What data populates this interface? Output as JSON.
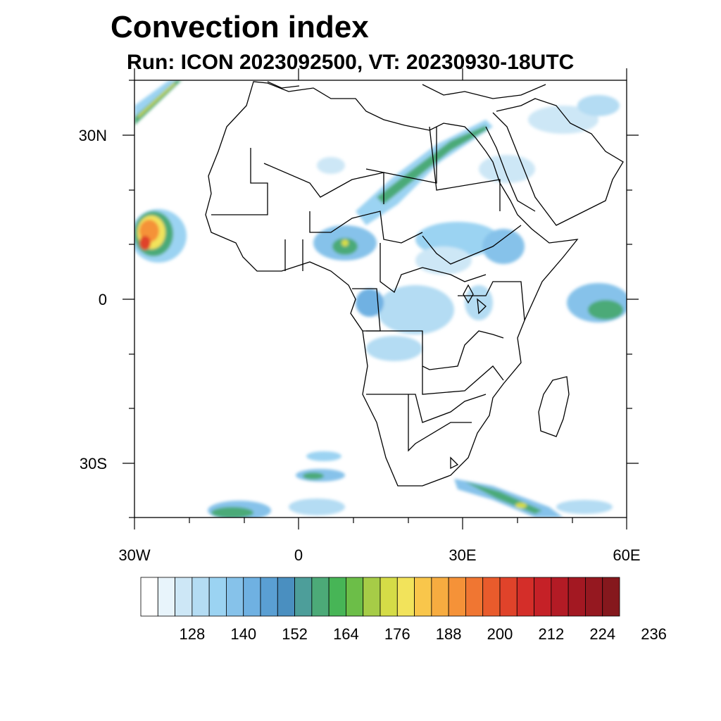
{
  "title": "Convection index",
  "subtitle": "Run: ICON 2023092500,  VT: 20230930-18UTC",
  "map": {
    "extent": {
      "lon_min": -30,
      "lon_max": 60,
      "lat_min": -40,
      "lat_max": 40
    },
    "lat_ticks": [
      "30N",
      "0",
      "30S"
    ],
    "lon_ticks": [
      "30W",
      "0",
      "30E",
      "60E"
    ]
  },
  "colorbar": {
    "labels": [
      "128",
      "140",
      "152",
      "164",
      "176",
      "188",
      "200",
      "212",
      "224",
      "236"
    ],
    "colors": [
      "#ffffff",
      "#e8f4fb",
      "#cde7f6",
      "#b4dcf3",
      "#9bd3f2",
      "#86c2ea",
      "#6fb1e2",
      "#5a9fd3",
      "#4a8fc0",
      "#4d9e9a",
      "#4caa78",
      "#47b556",
      "#6cbe48",
      "#a6cc47",
      "#d5dc47",
      "#f2e35b",
      "#f9c64b",
      "#f7ac40",
      "#f59238",
      "#f07632",
      "#e95b2c",
      "#e0432a",
      "#d42e29",
      "#c52127",
      "#b31b25",
      "#a31822",
      "#951820",
      "#85181d"
    ]
  }
}
